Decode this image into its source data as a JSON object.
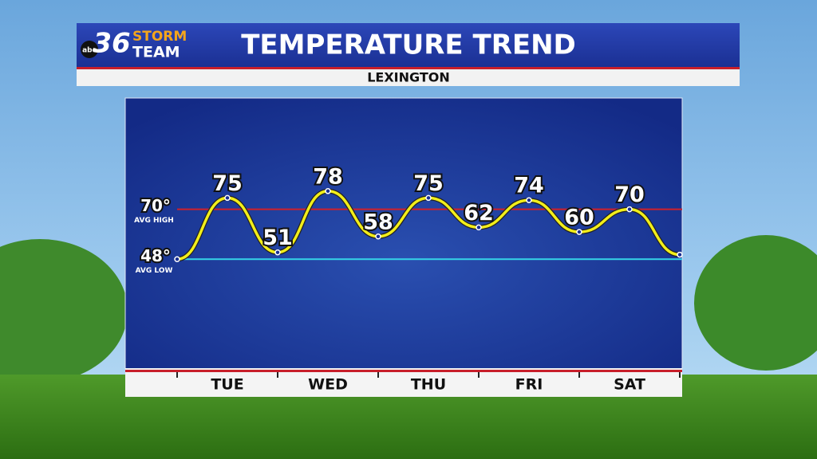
{
  "logo": {
    "network": "abc",
    "number": "36",
    "line1": "STORM",
    "line2": "TEAM"
  },
  "chart_data": {
    "type": "line",
    "title": "TEMPERATURE TREND",
    "subtitle": "LEXINGTON",
    "categories": [
      null,
      "TUE",
      null,
      "WED",
      null,
      "THU",
      null,
      "FRI",
      null,
      "SAT",
      null
    ],
    "series": [
      {
        "name": "Temperature",
        "color": "#f2ee1a",
        "values": [
          48,
          75,
          51,
          78,
          58,
          75,
          62,
          74,
          60,
          70,
          50
        ]
      }
    ],
    "ylim": [
      0,
      119
    ],
    "reference_lines": [
      {
        "value": 70,
        "label": "70°",
        "sublabel": "AVG HIGH",
        "color": "#d0202a"
      },
      {
        "value": 48,
        "label": "48°",
        "sublabel": "AVG LOW",
        "color": "#35d4e8"
      }
    ]
  }
}
